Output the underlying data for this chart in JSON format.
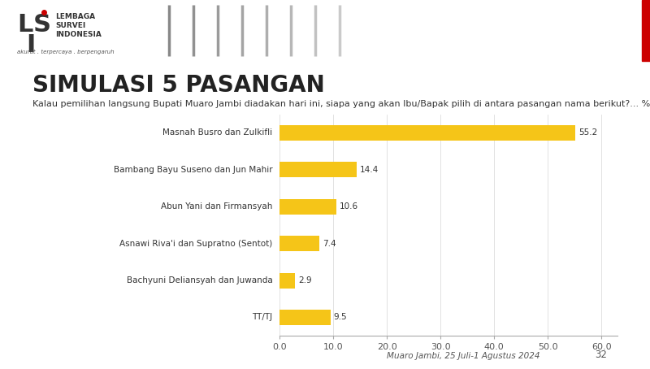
{
  "title": "SIMULASI 5 PASANGAN",
  "subtitle": "Kalau pemilihan langsung Bupati Muaro Jambi diadakan hari ini, siapa yang akan Ibu/Bapak pilih di antara pasangan nama berikut?... %",
  "categories": [
    "Masnah Busro dan Zulkifli",
    "Bambang Bayu Suseno dan Jun Mahir",
    "Abun Yani dan Firmansyah",
    "Asnawi Riva'i dan Supratno (Sentot)",
    "Bachyuni Deliansyah dan Juwanda",
    "TT/TJ"
  ],
  "values": [
    55.2,
    14.4,
    10.6,
    7.4,
    2.9,
    9.5
  ],
  "bar_color": "#F5C518",
  "xlim": [
    0,
    63
  ],
  "xticks": [
    0.0,
    10.0,
    20.0,
    30.0,
    40.0,
    50.0,
    60.0
  ],
  "xtick_labels": [
    "0.0",
    "10.0",
    "20.0",
    "30.0",
    "40.0",
    "50.0",
    "60.0"
  ],
  "background_color": "#FFFFFF",
  "header_bg_color": "#CCCCCC",
  "title_fontsize": 20,
  "subtitle_fontsize": 8,
  "label_fontsize": 7.5,
  "value_fontsize": 7.5,
  "tick_fontsize": 8,
  "footer_text": "Muaro Jambi, 25 Juli-1 Agustus 2024",
  "page_number": "32",
  "accent_color": "#CC0000",
  "stripe_color": "#AAAAAA",
  "bar_height": 0.42
}
